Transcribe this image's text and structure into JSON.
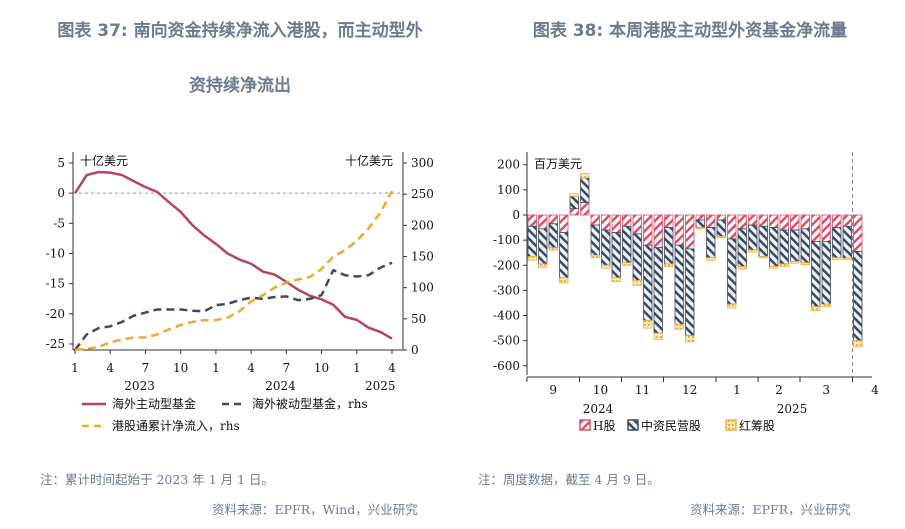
{
  "left": {
    "title_line1": "图表 37: 南向资金持续净流入港股，而主动型外",
    "title_line2": "资持续净流出",
    "note": "注：累计时间起始于 2023 年 1 月 1 日。",
    "source": "资料来源：EPFR，Wind，兴业研究"
  },
  "right": {
    "title": "图表 38: 本周港股主动型外资基金净流量",
    "note": "注：周度数据，截至 4 月 9 日。",
    "source": "资料来源：EPFR，兴业研究"
  },
  "chart_data": [
    {
      "type": "line",
      "left_unit": "十亿美元",
      "right_unit": "十亿美元",
      "ylim_left": [
        -25,
        5
      ],
      "yticks_left": [
        5,
        0,
        -5,
        -10,
        -15,
        -20,
        -25
      ],
      "ylim_right": [
        0,
        300
      ],
      "yticks_right": [
        300,
        250,
        200,
        150,
        100,
        50,
        0
      ],
      "x_months": [
        "2023-01",
        "2023-02",
        "2023-03",
        "2023-04",
        "2023-05",
        "2023-06",
        "2023-07",
        "2023-08",
        "2023-09",
        "2023-10",
        "2023-11",
        "2023-12",
        "2024-01",
        "2024-02",
        "2024-03",
        "2024-04",
        "2024-05",
        "2024-06",
        "2024-07",
        "2024-08",
        "2024-09",
        "2024-10",
        "2024-11",
        "2024-12",
        "2025-01",
        "2025-02",
        "2025-03",
        "2025-04"
      ],
      "xtick_labels": [
        "1",
        "4",
        "7",
        "10",
        "1",
        "4",
        "7",
        "10",
        "1",
        "4"
      ],
      "year_labels": [
        "2023",
        "2024",
        "2025"
      ],
      "series": [
        {
          "name": "海外主动型基金",
          "axis": "left",
          "color": "#b5455f",
          "dash": "solid",
          "values": [
            0,
            3,
            3.5,
            3.4,
            3.0,
            2.0,
            1.0,
            0.2,
            -1.5,
            -3.1,
            -5.3,
            -7.0,
            -8.4,
            -10.0,
            -11,
            -11.7,
            -13,
            -13.5,
            -14.7,
            -16,
            -17,
            -17.6,
            -18.5,
            -20.5,
            -21,
            -22.3,
            -23,
            -24.1
          ]
        },
        {
          "name": "海外被动型基金, rhs",
          "axis": "right",
          "color": "#3f4a5c",
          "dash": "dashed",
          "values": [
            0,
            25,
            35,
            38,
            45,
            55,
            60,
            65,
            65,
            65,
            63,
            62,
            72,
            74,
            80,
            84,
            82,
            85,
            86,
            80,
            82,
            88,
            128,
            120,
            118,
            120,
            132,
            140
          ]
        },
        {
          "name": "港股通累计净流入, rhs",
          "axis": "right",
          "color": "#f0a830",
          "dash": "dashed",
          "values": [
            0,
            2,
            5,
            12,
            17,
            20,
            20,
            25,
            33,
            40,
            45,
            48,
            48,
            52,
            62,
            78,
            88,
            100,
            108,
            113,
            117,
            130,
            150,
            160,
            175,
            195,
            220,
            255
          ]
        }
      ],
      "reference_line": 0
    },
    {
      "type": "bar",
      "stacked": true,
      "unit": "百万美元",
      "ylim": [
        -600,
        200
      ],
      "yticks": [
        200,
        100,
        0,
        -100,
        -200,
        -300,
        -400,
        -500,
        -600
      ],
      "months": [
        {
          "label": "9",
          "weeks": 5
        },
        {
          "label": "10",
          "weeks": 4
        },
        {
          "label": "11",
          "weeks": 4
        },
        {
          "label": "12",
          "weeks": 5
        },
        {
          "label": "1",
          "weeks": 4
        },
        {
          "label": "2",
          "weeks": 4
        },
        {
          "label": "3",
          "weeks": 5
        },
        {
          "label": "4",
          "weeks": 1
        }
      ],
      "year_labels": [
        "2024",
        "2025"
      ],
      "series": [
        {
          "name": "H股",
          "color": "#d9506a",
          "values": [
            -45,
            -55,
            -35,
            -70,
            25,
            50,
            -40,
            -60,
            -70,
            -45,
            -75,
            -120,
            -130,
            -50,
            -120,
            -135,
            -20,
            -50,
            -20,
            -95,
            -55,
            -40,
            -45,
            -50,
            -60,
            -60,
            -55,
            -105,
            -105,
            -50,
            -45,
            -145
          ]
        },
        {
          "name": "中资民营股",
          "color": "#3f4a5c",
          "values": [
            -120,
            -140,
            -95,
            -180,
            50,
            98,
            -120,
            -140,
            -180,
            -145,
            -185,
            -300,
            -340,
            -145,
            -315,
            -345,
            -30,
            -120,
            -65,
            -260,
            -150,
            -100,
            -120,
            -155,
            -135,
            -125,
            -135,
            -260,
            -250,
            -120,
            -127,
            -355
          ]
        },
        {
          "name": "红筹股",
          "color": "#f0b040",
          "values": [
            -15,
            -15,
            -10,
            -20,
            10,
            17,
            -10,
            -12,
            -15,
            -10,
            -20,
            -30,
            -25,
            -10,
            -20,
            -25,
            -5,
            -10,
            -5,
            -15,
            -10,
            -8,
            -5,
            -7,
            -10,
            -7,
            -8,
            -15,
            -10,
            -8,
            -6,
            -25
          ]
        }
      ],
      "current_week_marker": true
    }
  ]
}
